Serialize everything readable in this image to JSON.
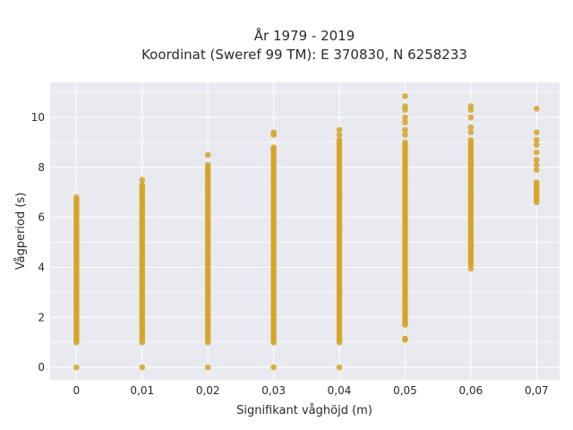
{
  "chart_data": {
    "type": "scatter",
    "title": "År 1979 - 2019",
    "subtitle": "Koordinat (Sweref 99 TM): E 370830, N 6258233",
    "xlabel": "Signifikant våghöjd (m)",
    "ylabel": "Vågperiod (s)",
    "xlim": [
      -0.004,
      0.0735
    ],
    "ylim": [
      -0.5,
      11.4
    ],
    "grid": true,
    "background": "#e9e9f0",
    "point_color": "#d4a325",
    "x_ticks": [
      "0",
      "0,01",
      "0,02",
      "0,03",
      "0,04",
      "0,05",
      "0,06",
      "0,07"
    ],
    "x_tick_values": [
      0,
      0.01,
      0.02,
      0.03,
      0.04,
      0.05,
      0.06,
      0.07
    ],
    "y_ticks": [
      "0",
      "2",
      "4",
      "6",
      "8",
      "10"
    ],
    "y_tick_values": [
      0,
      2,
      4,
      6,
      8,
      10
    ],
    "series": [
      {
        "x": 0,
        "y_min": 1.0,
        "y_max": 6.8,
        "extra_y": [
          0
        ]
      },
      {
        "x": 0.01,
        "y_min": 1.0,
        "y_max": 7.3,
        "extra_y": [
          0,
          7.5
        ]
      },
      {
        "x": 0.02,
        "y_min": 1.0,
        "y_max": 8.1,
        "extra_y": [
          0,
          8.5
        ]
      },
      {
        "x": 0.03,
        "y_min": 1.0,
        "y_max": 8.8,
        "extra_y": [
          0,
          9.3,
          9.4
        ]
      },
      {
        "x": 0.04,
        "y_min": 1.0,
        "y_max": 9.0,
        "extra_y": [
          0,
          9.1,
          9.3,
          9.5
        ]
      },
      {
        "x": 0.05,
        "y_min": 1.7,
        "y_max": 9.0,
        "extra_y": [
          1.1,
          1.15,
          9.3,
          9.5,
          9.8,
          10.0,
          10.3,
          10.45,
          10.85
        ]
      },
      {
        "x": 0.06,
        "y_min": 4.1,
        "y_max": 9.0,
        "extra_y": [
          3.95,
          9.1,
          9.4,
          9.6,
          10.0,
          10.3,
          10.45
        ]
      },
      {
        "x": 0.07,
        "y_min": 6.6,
        "y_max": 7.4,
        "extra_y": [
          7.9,
          8.1,
          8.3,
          8.6,
          8.9,
          9.1,
          9.4,
          10.35
        ]
      }
    ]
  }
}
